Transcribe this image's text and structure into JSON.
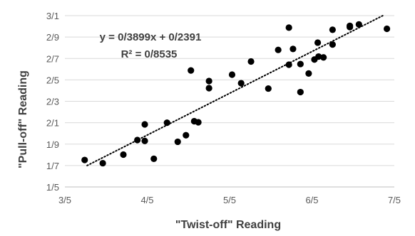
{
  "chart_data": {
    "type": "scatter",
    "xlabel": "\"Twist-off\" Reading",
    "ylabel": "\"Pull-off\" Reading",
    "x_tick_labels": [
      "3/5",
      "4/5",
      "5/5",
      "6/5",
      "7/5"
    ],
    "y_tick_labels": [
      "1/5",
      "1/7",
      "1/9",
      "2/1",
      "2/3",
      "2/5",
      "2/7",
      "2/9",
      "3/1"
    ],
    "x_ticks": [
      3.5,
      4.5,
      5.5,
      6.5,
      7.5
    ],
    "y_ticks": [
      1.5,
      1.7,
      1.9,
      2.1,
      2.3,
      2.5,
      2.7,
      2.9,
      3.1
    ],
    "xlim": [
      3.5,
      7.5
    ],
    "ylim": [
      1.5,
      3.1
    ],
    "grid": "horizontal",
    "points": [
      {
        "x": 3.74,
        "y": 1.752
      },
      {
        "x": 3.96,
        "y": 1.722
      },
      {
        "x": 4.21,
        "y": 1.802
      },
      {
        "x": 4.38,
        "y": 1.938
      },
      {
        "x": 4.47,
        "y": 1.93
      },
      {
        "x": 4.47,
        "y": 2.084
      },
      {
        "x": 4.58,
        "y": 1.763
      },
      {
        "x": 4.74,
        "y": 2.1
      },
      {
        "x": 4.87,
        "y": 1.922
      },
      {
        "x": 4.97,
        "y": 1.983
      },
      {
        "x": 5.03,
        "y": 2.588
      },
      {
        "x": 5.07,
        "y": 2.114
      },
      {
        "x": 5.12,
        "y": 2.104
      },
      {
        "x": 5.25,
        "y": 2.489
      },
      {
        "x": 5.25,
        "y": 2.423
      },
      {
        "x": 5.53,
        "y": 2.549
      },
      {
        "x": 5.64,
        "y": 2.469
      },
      {
        "x": 5.76,
        "y": 2.672
      },
      {
        "x": 5.97,
        "y": 2.419
      },
      {
        "x": 6.09,
        "y": 2.78
      },
      {
        "x": 6.22,
        "y": 2.988
      },
      {
        "x": 6.22,
        "y": 2.642
      },
      {
        "x": 6.27,
        "y": 2.789
      },
      {
        "x": 6.36,
        "y": 2.386
      },
      {
        "x": 6.36,
        "y": 2.648
      },
      {
        "x": 6.46,
        "y": 2.56
      },
      {
        "x": 6.53,
        "y": 2.69
      },
      {
        "x": 6.57,
        "y": 2.848
      },
      {
        "x": 6.58,
        "y": 2.718
      },
      {
        "x": 6.64,
        "y": 2.71
      },
      {
        "x": 6.75,
        "y": 2.968
      },
      {
        "x": 6.75,
        "y": 2.83
      },
      {
        "x": 6.96,
        "y": 3.005
      },
      {
        "x": 6.96,
        "y": 2.993
      },
      {
        "x": 7.07,
        "y": 3.018
      },
      {
        "x": 7.41,
        "y": 2.977
      }
    ],
    "trendline": {
      "type": "linear",
      "style": "dotted",
      "x_start": 3.77,
      "x_end": 7.36,
      "y_start": 1.7,
      "y_end": 3.1
    },
    "annotations": [
      "y = 0/3899x + 0/2391",
      "R² = 0/8535"
    ]
  }
}
